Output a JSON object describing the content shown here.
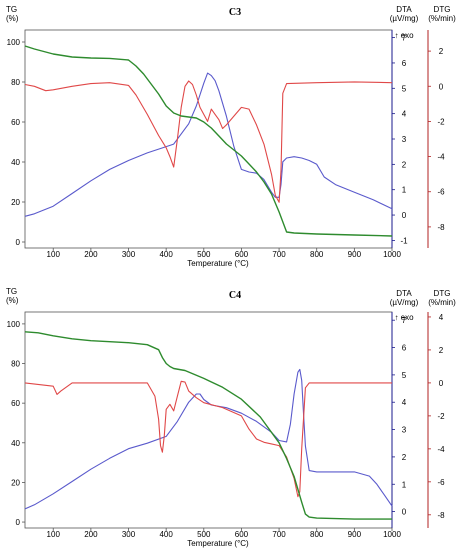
{
  "colors": {
    "tg": "#2e8b2e",
    "dta": "#5a5acc",
    "dtg": "#e04848",
    "dtg_axis": "#b22222",
    "dta_axis": "#1a1a8c",
    "axis": "#555555"
  },
  "chart_data": [
    {
      "type": "line",
      "title": "C3",
      "xlabel": "Temperature (°C)",
      "x_ticks": [
        100,
        200,
        300,
        400,
        500,
        600,
        700,
        800,
        900,
        1000
      ],
      "xlim": [
        25,
        1000
      ],
      "left_axis": {
        "label_line1": "TG",
        "label_line2": "(%)",
        "ticks": [
          0,
          20,
          40,
          60,
          80,
          100
        ],
        "lim": [
          -3,
          106
        ]
      },
      "dta_axis": {
        "label_line1": "DTA",
        "label_line2": "(µV/mg)",
        "exo_label": "↑ exo",
        "ticks": [
          -1,
          0,
          1,
          2,
          3,
          4,
          5,
          6,
          7
        ],
        "lim": [
          -1.3,
          7.3
        ]
      },
      "dtg_axis": {
        "label_line1": "DTG",
        "label_line2": "(%/min)",
        "ticks": [
          -8,
          -6,
          -4,
          -2,
          0,
          2
        ],
        "lim": [
          -9.2,
          3.2
        ]
      },
      "series": [
        {
          "axis": "tg",
          "x": [
            25,
            50,
            100,
            150,
            200,
            250,
            300,
            320,
            340,
            360,
            380,
            400,
            420,
            440,
            460,
            480,
            500,
            520,
            540,
            560,
            580,
            600,
            620,
            640,
            660,
            680,
            700,
            720,
            740,
            800,
            900,
            1000
          ],
          "values": [
            98,
            96.5,
            94,
            92.5,
            92,
            91.8,
            91,
            88,
            84,
            79,
            74,
            68,
            64.5,
            63,
            62.5,
            62,
            60,
            57,
            53,
            49,
            46,
            43,
            39,
            35,
            30,
            24,
            15,
            5,
            4.5,
            4,
            3.5,
            3
          ]
        },
        {
          "axis": "dta",
          "x": [
            25,
            50,
            100,
            150,
            200,
            250,
            300,
            350,
            400,
            420,
            440,
            460,
            480,
            500,
            510,
            520,
            530,
            540,
            560,
            580,
            600,
            620,
            640,
            660,
            680,
            690,
            700,
            705,
            710,
            720,
            740,
            760,
            780,
            800,
            820,
            850,
            900,
            950,
            1000
          ],
          "values": [
            -0.05,
            0.05,
            0.35,
            0.85,
            1.35,
            1.8,
            2.15,
            2.45,
            2.7,
            2.8,
            3.2,
            3.6,
            4.3,
            5.2,
            5.6,
            5.5,
            5.3,
            4.9,
            3.9,
            2.7,
            1.8,
            1.7,
            1.65,
            1.4,
            0.9,
            0.7,
            0.7,
            1.2,
            2.1,
            2.25,
            2.3,
            2.25,
            2.15,
            2.0,
            1.5,
            1.2,
            0.9,
            0.6,
            0.25
          ]
        },
        {
          "axis": "dtg",
          "x": [
            25,
            50,
            80,
            100,
            150,
            200,
            250,
            300,
            320,
            350,
            380,
            400,
            410,
            420,
            430,
            440,
            450,
            460,
            470,
            480,
            490,
            500,
            510,
            520,
            530,
            540,
            550,
            560,
            580,
            600,
            620,
            640,
            660,
            680,
            690,
            700,
            705,
            710,
            720,
            800,
            900,
            1000
          ],
          "values": [
            0.1,
            0,
            -0.25,
            -0.2,
            0,
            0.15,
            0.2,
            0.05,
            -0.5,
            -1.6,
            -2.8,
            -3.5,
            -4.0,
            -4.6,
            -3.0,
            -1.2,
            0,
            0.3,
            0.1,
            -0.5,
            -1.2,
            -1.6,
            -2.0,
            -1.3,
            -1.6,
            -1.9,
            -2.4,
            -2.2,
            -1.7,
            -1.2,
            -1.3,
            -2.2,
            -3.3,
            -5.0,
            -6.2,
            -6.6,
            -4.8,
            -0.4,
            0.15,
            0.2,
            0.25,
            0.2
          ]
        }
      ]
    },
    {
      "type": "line",
      "title": "C4",
      "xlabel": "Temperature (°C)",
      "x_ticks": [
        100,
        200,
        300,
        400,
        500,
        600,
        700,
        800,
        900,
        1000
      ],
      "xlim": [
        25,
        1000
      ],
      "left_axis": {
        "label_line1": "TG",
        "label_line2": "(%)",
        "ticks": [
          0,
          20,
          40,
          60,
          80,
          100
        ],
        "lim": [
          -3,
          106
        ]
      },
      "dta_axis": {
        "label_line1": "DTA",
        "label_line2": "(µV/mg)",
        "exo_label": "↑ exo",
        "ticks": [
          0,
          1,
          2,
          3,
          4,
          5,
          6,
          7
        ],
        "lim": [
          -0.6,
          7.3
        ]
      },
      "dtg_axis": {
        "label_line1": "DTG",
        "label_line2": "(%/min)",
        "ticks": [
          -8,
          -6,
          -4,
          -2,
          0,
          2,
          4
        ],
        "lim": [
          -8.8,
          4.3
        ]
      },
      "series": [
        {
          "axis": "tg",
          "x": [
            25,
            60,
            100,
            150,
            200,
            250,
            300,
            350,
            380,
            390,
            400,
            410,
            420,
            450,
            500,
            550,
            600,
            650,
            700,
            720,
            740,
            760,
            770,
            780,
            800,
            900,
            1000
          ],
          "values": [
            96,
            95.5,
            94,
            92.5,
            91.5,
            91,
            90.5,
            89.5,
            87,
            83,
            80,
            78.5,
            77.5,
            76.5,
            72.5,
            68,
            62,
            53,
            40,
            32,
            23,
            10,
            4,
            2.5,
            2,
            1.5,
            1.5
          ]
        },
        {
          "axis": "dta",
          "x": [
            25,
            50,
            100,
            150,
            200,
            250,
            300,
            350,
            400,
            430,
            460,
            480,
            490,
            500,
            520,
            560,
            600,
            640,
            680,
            700,
            720,
            730,
            740,
            750,
            755,
            760,
            765,
            770,
            780,
            800,
            850,
            900,
            940,
            960,
            980,
            1000
          ],
          "values": [
            0.1,
            0.25,
            0.65,
            1.1,
            1.55,
            1.95,
            2.3,
            2.5,
            2.75,
            3.3,
            4.0,
            4.3,
            4.3,
            4.1,
            3.9,
            3.8,
            3.6,
            3.3,
            2.9,
            2.6,
            2.55,
            3.2,
            4.3,
            5.1,
            5.2,
            4.8,
            3.6,
            2.4,
            1.5,
            1.45,
            1.45,
            1.45,
            1.3,
            1.0,
            0.6,
            0.2
          ]
        },
        {
          "axis": "dtg",
          "x": [
            25,
            100,
            110,
            120,
            150,
            200,
            300,
            350,
            370,
            380,
            385,
            390,
            395,
            400,
            410,
            420,
            430,
            440,
            450,
            460,
            480,
            500,
            550,
            600,
            620,
            640,
            660,
            680,
            700,
            720,
            740,
            750,
            755,
            760,
            770,
            780,
            800,
            900,
            1000
          ],
          "values": [
            0,
            -0.2,
            -0.7,
            -0.5,
            0,
            0,
            0,
            0,
            -0.8,
            -2.2,
            -3.8,
            -4.2,
            -3.2,
            -1.6,
            -1.3,
            -1.7,
            -0.8,
            0.1,
            0.05,
            -0.5,
            -0.9,
            -1.2,
            -1.5,
            -2.0,
            -2.8,
            -3.4,
            -3.6,
            -3.7,
            -3.8,
            -4.5,
            -5.8,
            -6.9,
            -6.6,
            -4.0,
            -0.3,
            0,
            0,
            0,
            0
          ]
        }
      ]
    }
  ]
}
